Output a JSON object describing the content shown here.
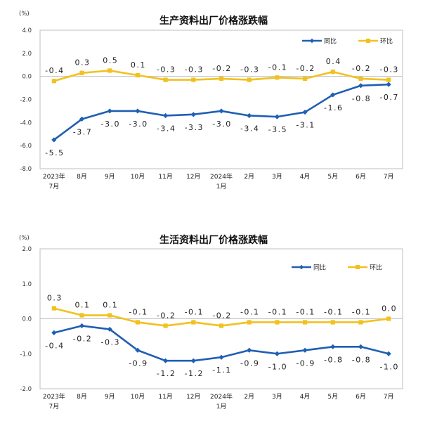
{
  "chart_data": [
    {
      "type": "line",
      "title": "生产资料出厂价格涨跌幅",
      "unit_label": "(%)",
      "ylim": [
        -8.0,
        4.0
      ],
      "yticks": [
        "4.0",
        "2.0",
        "0.0",
        "-2.0",
        "-4.0",
        "-6.0",
        "-8.0"
      ],
      "categories": [
        [
          "2023年",
          "7月"
        ],
        [
          "8月"
        ],
        [
          "9月"
        ],
        [
          "10月"
        ],
        [
          "11月"
        ],
        [
          "12月"
        ],
        [
          "2024年",
          "1月"
        ],
        [
          "2月"
        ],
        [
          "3月"
        ],
        [
          "4月"
        ],
        [
          "5月"
        ],
        [
          "6月"
        ],
        [
          "7月"
        ]
      ],
      "legend_position": "top-right",
      "series": [
        {
          "name": "同比",
          "color": "#1f5fb4",
          "marker": "diamond",
          "values": [
            -5.5,
            -3.7,
            -3.0,
            -3.0,
            -3.4,
            -3.3,
            -3.0,
            -3.4,
            -3.5,
            -3.1,
            -1.6,
            -0.8,
            -0.7
          ],
          "labels": [
            "-5.5",
            "-3.7",
            "-3.0",
            "-3.0",
            "-3.4",
            "-3.3",
            "-3.0",
            "-3.4",
            "-3.5",
            "-3.1",
            "-1.6",
            "-0.8",
            "-0.7"
          ]
        },
        {
          "name": "环比",
          "color": "#f2c11e",
          "marker": "square",
          "values": [
            -0.4,
            0.3,
            0.5,
            0.1,
            -0.3,
            -0.3,
            -0.2,
            -0.3,
            -0.1,
            -0.2,
            0.4,
            -0.2,
            -0.3
          ],
          "labels": [
            "-0.4",
            "0.3",
            "0.5",
            "0.1",
            "-0.3",
            "-0.3",
            "-0.2",
            "-0.3",
            "-0.1",
            "-0.2",
            "0.4",
            "-0.2",
            "-0.3"
          ]
        }
      ]
    },
    {
      "type": "line",
      "title": "生活资料出厂价格涨跌幅",
      "unit_label": "(%)",
      "ylim": [
        -2.0,
        2.0
      ],
      "yticks": [
        "2.0",
        "1.0",
        "0.0",
        "-1.0",
        "-2.0"
      ],
      "categories": [
        [
          "2023年",
          "7月"
        ],
        [
          "8月"
        ],
        [
          "9月"
        ],
        [
          "10月"
        ],
        [
          "11月"
        ],
        [
          "12月"
        ],
        [
          "2024年",
          "1月"
        ],
        [
          "2月"
        ],
        [
          "3月"
        ],
        [
          "4月"
        ],
        [
          "5月"
        ],
        [
          "6月"
        ],
        [
          "7月"
        ]
      ],
      "legend_position": "top-right",
      "series": [
        {
          "name": "同比",
          "color": "#1f5fb4",
          "marker": "diamond",
          "values": [
            -0.4,
            -0.2,
            -0.3,
            -0.9,
            -1.2,
            -1.2,
            -1.1,
            -0.9,
            -1.0,
            -0.9,
            -0.8,
            -0.8,
            -1.0
          ],
          "labels": [
            "-0.4",
            "-0.2",
            "-0.3",
            "-0.9",
            "-1.2",
            "-1.2",
            "-1.1",
            "-0.9",
            "-1.0",
            "-0.9",
            "-0.8",
            "-0.8",
            "-1.0"
          ]
        },
        {
          "name": "环比",
          "color": "#f2c11e",
          "marker": "square",
          "values": [
            0.3,
            0.1,
            0.1,
            -0.1,
            -0.2,
            -0.1,
            -0.2,
            -0.1,
            -0.1,
            -0.1,
            -0.1,
            -0.1,
            0.0
          ],
          "labels": [
            "0.3",
            "0.1",
            "0.1",
            "-0.1",
            "-0.2",
            "-0.1",
            "-0.2",
            "-0.1",
            "-0.1",
            "-0.1",
            "-0.1",
            "-0.1",
            "0.0"
          ]
        }
      ]
    }
  ]
}
